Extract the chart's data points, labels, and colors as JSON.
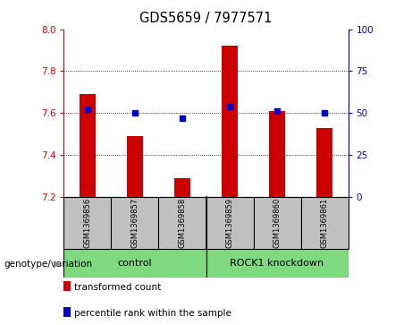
{
  "title": "GDS5659 / 7977571",
  "samples": [
    "GSM1369856",
    "GSM1369857",
    "GSM1369858",
    "GSM1369859",
    "GSM1369860",
    "GSM1369861"
  ],
  "transformed_counts": [
    7.69,
    7.49,
    7.29,
    7.92,
    7.61,
    7.53
  ],
  "percentile_ranks": [
    52,
    50,
    47,
    54,
    51,
    50
  ],
  "ymin": 7.2,
  "ymax": 8.0,
  "y_ticks_left": [
    7.2,
    7.4,
    7.6,
    7.8,
    8.0
  ],
  "y_ticks_right": [
    0,
    25,
    50,
    75,
    100
  ],
  "groups": [
    {
      "label": "control",
      "color": "#7FD97F"
    },
    {
      "label": "ROCK1 knockdown",
      "color": "#7FD97F"
    }
  ],
  "bar_color": "#CC0000",
  "dot_color": "#0000CC",
  "bar_base": 7.2,
  "grid_color": "#000000",
  "tick_color_left": "#CC0000",
  "tick_color_right": "#0000CC",
  "sample_box_color": "#C0C0C0",
  "legend_bar_label": "transformed count",
  "legend_dot_label": "percentile rank within the sample",
  "group_label_prefix": "genotype/variation"
}
